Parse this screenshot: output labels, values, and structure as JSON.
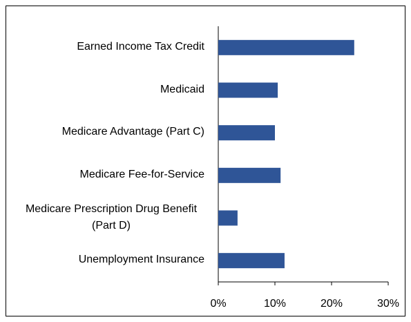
{
  "chart_data": {
    "type": "barh",
    "categories": [
      "Earned Income Tax Credit",
      "Medicaid",
      "Medicare Advantage (Part C)",
      "Medicare Fee-for-Service",
      "Medicare Prescription Drug Benefit (Part D)",
      "Unemployment Insurance"
    ],
    "values": [
      24,
      10.5,
      10,
      11,
      3.4,
      11.7
    ],
    "color": "#2f5597",
    "xlim": [
      0,
      30
    ],
    "xticks": [
      {
        "value": 0,
        "label": "0%"
      },
      {
        "value": 10,
        "label": "10%"
      },
      {
        "value": 20,
        "label": "20%"
      },
      {
        "value": 30,
        "label": "30%"
      }
    ],
    "grid": false
  }
}
